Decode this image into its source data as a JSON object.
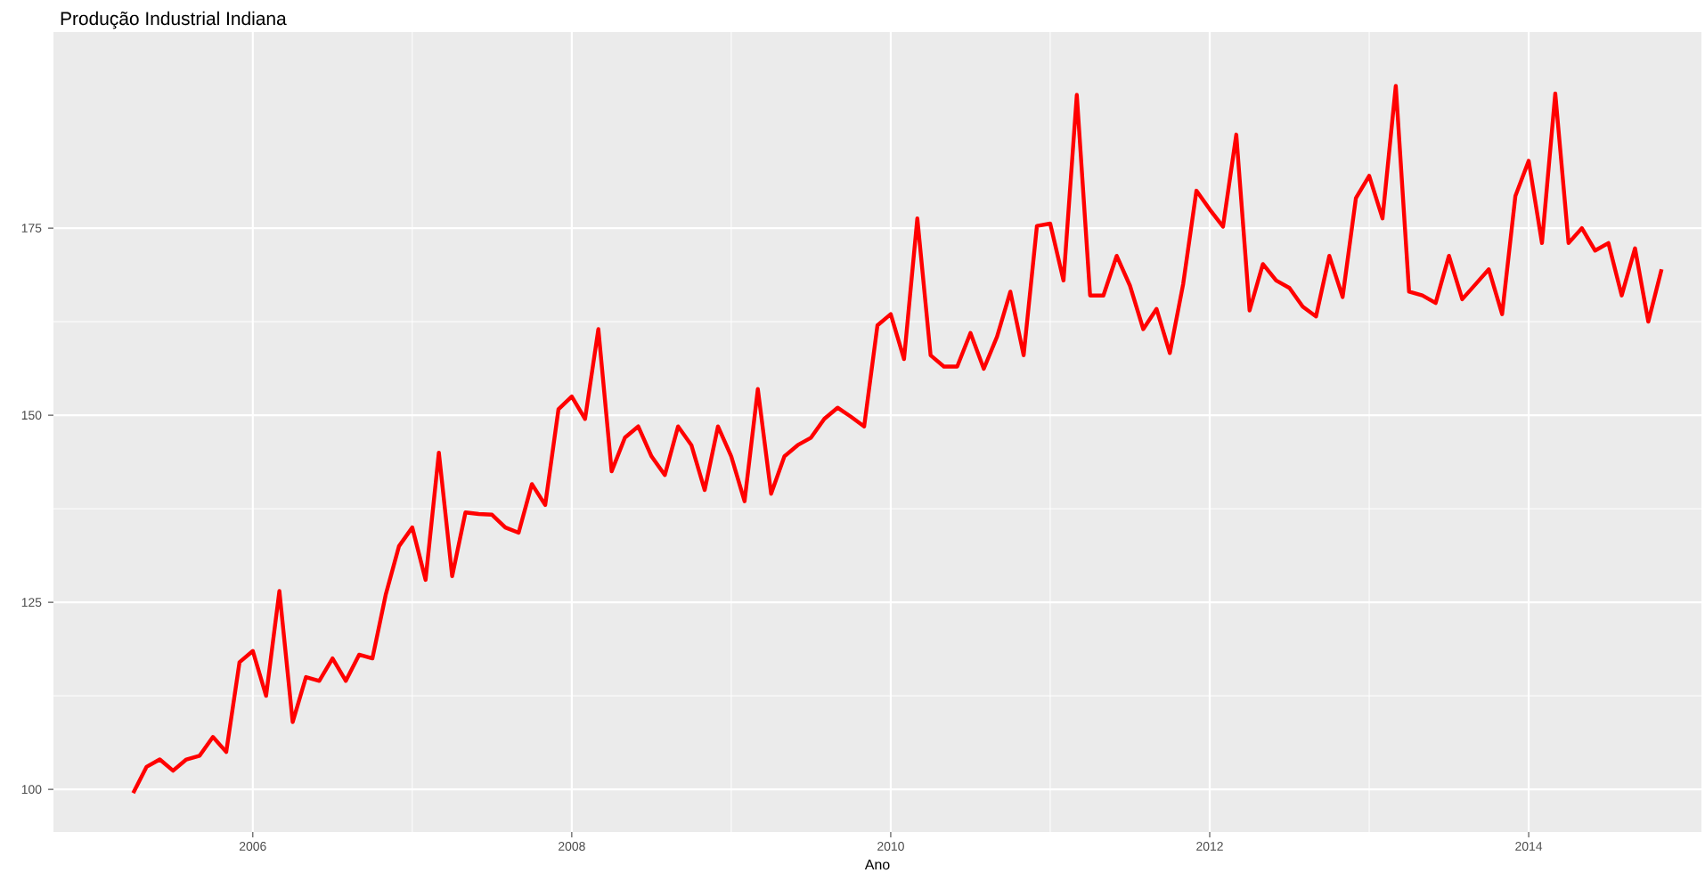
{
  "chart_data": {
    "type": "line",
    "title": "Produção Industrial Indiana",
    "xlabel": "Ano",
    "x": [
      "2005-04",
      "2005-05",
      "2005-06",
      "2005-07",
      "2005-08",
      "2005-09",
      "2005-10",
      "2005-11",
      "2005-12",
      "2006-01",
      "2006-02",
      "2006-03",
      "2006-04",
      "2006-05",
      "2006-06",
      "2006-07",
      "2006-08",
      "2006-09",
      "2006-10",
      "2006-11",
      "2006-12",
      "2007-01",
      "2007-02",
      "2007-03",
      "2007-04",
      "2007-05",
      "2007-06",
      "2007-07",
      "2007-08",
      "2007-09",
      "2007-10",
      "2007-11",
      "2007-12",
      "2008-01",
      "2008-02",
      "2008-03",
      "2008-04",
      "2008-05",
      "2008-06",
      "2008-07",
      "2008-08",
      "2008-09",
      "2008-10",
      "2008-11",
      "2008-12",
      "2009-01",
      "2009-02",
      "2009-03",
      "2009-04",
      "2009-05",
      "2009-06",
      "2009-07",
      "2009-08",
      "2009-09",
      "2009-10",
      "2009-11",
      "2009-12",
      "2010-01",
      "2010-02",
      "2010-03",
      "2010-04",
      "2010-05",
      "2010-06",
      "2010-07",
      "2010-08",
      "2010-09",
      "2010-10",
      "2010-11",
      "2010-12",
      "2011-01",
      "2011-02",
      "2011-03",
      "2011-04",
      "2011-05",
      "2011-06",
      "2011-07",
      "2011-08",
      "2011-09",
      "2011-10",
      "2011-11",
      "2011-12",
      "2012-01",
      "2012-02",
      "2012-03",
      "2012-04",
      "2012-05",
      "2012-06",
      "2012-07",
      "2012-08",
      "2012-09",
      "2012-10",
      "2012-11",
      "2012-12",
      "2013-01",
      "2013-02",
      "2013-03",
      "2013-04",
      "2013-05",
      "2013-06",
      "2013-07",
      "2013-08",
      "2013-09",
      "2013-10",
      "2013-11",
      "2013-12",
      "2014-01",
      "2014-02",
      "2014-03",
      "2014-04",
      "2014-05",
      "2014-06",
      "2014-07",
      "2014-08",
      "2014-09",
      "2014-10",
      "2014-11"
    ],
    "series": [
      {
        "color": "#ff0000",
        "values": [
          99.5,
          103,
          104,
          102.5,
          104,
          104.5,
          107,
          105,
          117,
          118.5,
          112.5,
          126.5,
          109,
          115,
          114.5,
          117.5,
          114.5,
          118,
          117.5,
          126,
          132.5,
          135,
          128,
          145,
          128.5,
          137,
          136.8,
          136.7,
          135,
          134.3,
          140.8,
          138,
          150.8,
          152.5,
          149.5,
          161.5,
          142.5,
          147,
          148.5,
          144.5,
          142,
          148.5,
          146,
          140,
          148.5,
          144.5,
          138.5,
          153.5,
          139.5,
          144.5,
          146,
          147,
          149.5,
          151,
          149.8,
          148.5,
          162,
          163.5,
          157.5,
          176.3,
          158,
          156.5,
          156.5,
          161,
          156.2,
          160.5,
          166.5,
          158,
          175.3,
          175.6,
          168,
          192.8,
          166,
          166,
          171.3,
          167.3,
          161.5,
          164.2,
          158.3,
          167.5,
          180,
          177.5,
          175.2,
          187.5,
          164,
          170.2,
          168,
          167,
          164.5,
          163.2,
          171.3,
          165.8,
          179,
          182,
          176.3,
          194,
          166.5,
          166,
          165,
          171.3,
          165.5,
          167.5,
          169.5,
          163.5,
          179.3,
          184,
          173,
          193,
          173,
          175,
          172,
          173,
          166,
          172.3,
          162.5,
          169.5
        ]
      }
    ],
    "xlim": [
      "2004-10",
      "2015-02"
    ],
    "xticks": [
      "2006",
      "2008",
      "2010",
      "2012",
      "2014"
    ],
    "ylim": [
      94.3,
      201.2
    ],
    "yticks": [
      100,
      125,
      150,
      175
    ],
    "grid": true,
    "marker": "none",
    "line_style": "solid"
  }
}
